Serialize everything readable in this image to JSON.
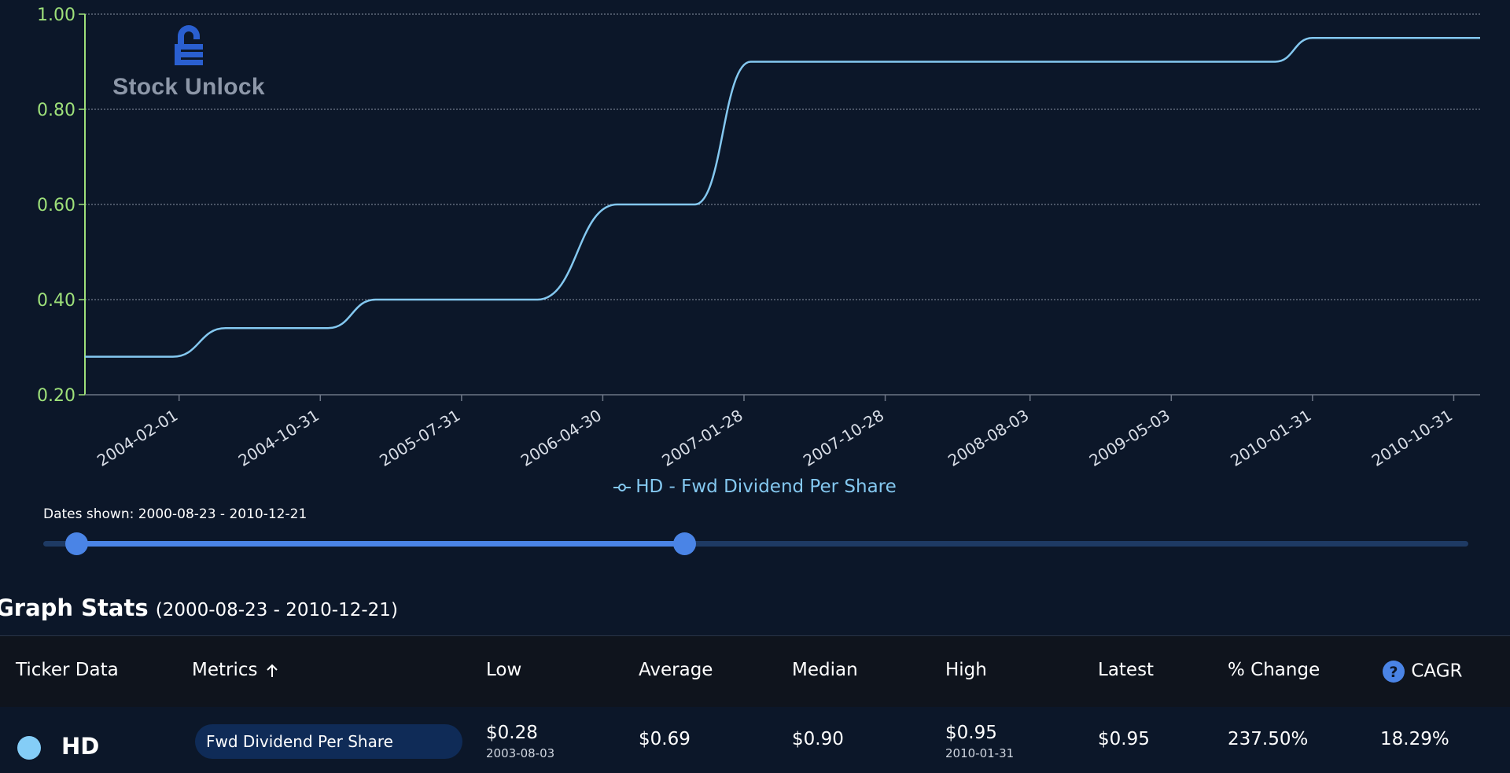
{
  "logo": {
    "text": "Stock Unlock",
    "icon": "lock-icon",
    "color": "#2a5fd0"
  },
  "chart_data": {
    "type": "line",
    "series": [
      {
        "name": "HD - Fwd Dividend Per Share",
        "color": "#84c8f0",
        "points": [
          [
            "2003-08-03",
            0.28
          ],
          [
            "2004-01-20",
            0.28
          ],
          [
            "2004-05-01",
            0.34
          ],
          [
            "2004-11-15",
            0.34
          ],
          [
            "2005-02-15",
            0.4
          ],
          [
            "2005-12-25",
            0.4
          ],
          [
            "2006-05-28",
            0.6
          ],
          [
            "2006-10-25",
            0.6
          ],
          [
            "2007-02-10",
            0.9
          ],
          [
            "2009-11-20",
            0.9
          ],
          [
            "2010-01-31",
            0.95
          ],
          [
            "2010-12-21",
            0.95
          ]
        ]
      }
    ],
    "xlim": [
      "2003-08-03",
      "2010-12-21"
    ],
    "ylim": [
      0.2,
      1.0
    ],
    "x_ticks": [
      "2004-02-01",
      "2004-10-31",
      "2005-07-31",
      "2006-04-30",
      "2007-01-28",
      "2007-10-28",
      "2008-08-03",
      "2009-05-03",
      "2010-01-31",
      "2010-10-31"
    ],
    "y_ticks": [
      0.2,
      0.4,
      0.6,
      0.8,
      1.0
    ],
    "y_tick_labels": [
      "0.20",
      "0.40",
      "0.60",
      "0.80",
      "1.00"
    ],
    "grid": true,
    "legend": "bottom-center",
    "axis_color": "#9ee07a",
    "tick_label_color": "#d8dde6",
    "grid_color": "#8a93a3"
  },
  "range_slider": {
    "label": "Dates shown: 2000-08-23 - 2010-12-21",
    "start_fraction": 0.023,
    "end_fraction": 0.45
  },
  "stats": {
    "title": "Graph Stats",
    "range": "(2000-08-23 - 2010-12-21)",
    "columns": {
      "ticker": "Ticker Data",
      "metrics": "Metrics",
      "low": "Low",
      "average": "Average",
      "median": "Median",
      "high": "High",
      "latest": "Latest",
      "pct_change": "% Change",
      "cagr": "CAGR"
    },
    "row": {
      "ticker": "HD",
      "metric": "Fwd Dividend Per Share",
      "low": "$0.28",
      "low_date": "2003-08-03",
      "average": "$0.69",
      "median": "$0.90",
      "high": "$0.95",
      "high_date": "2010-01-31",
      "latest": "$0.95",
      "pct_change": "237.50%",
      "cagr": "18.29%"
    }
  }
}
